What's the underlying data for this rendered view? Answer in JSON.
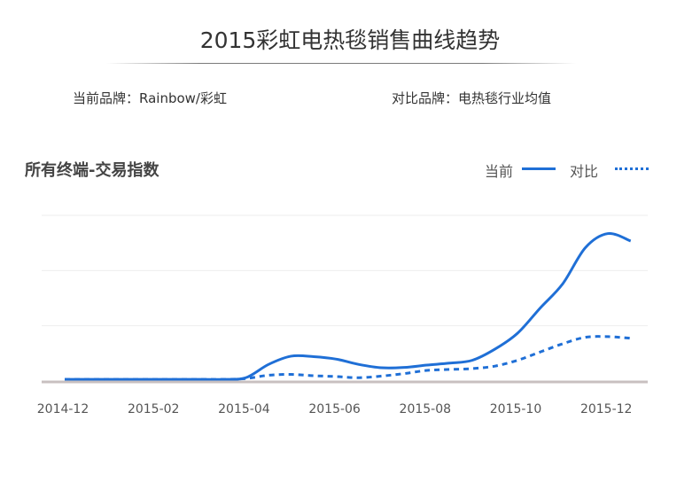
{
  "header": {
    "title": "2015彩虹电热毯销售曲线趋势",
    "current_brand": "当前品牌：Rainbow/彩虹",
    "compare_brand": "对比品牌：电热毯行业均值"
  },
  "section": {
    "title": "所有终端-交易指数"
  },
  "legend": {
    "current": "当前",
    "compare": "对比"
  },
  "colors": {
    "series": "#1f6fd6",
    "axis": "#c8c0c0",
    "grid": "#eeeeee",
    "tick_text": "#555555"
  },
  "chart_data": {
    "type": "line",
    "title": "所有终端-交易指数",
    "xlabel": "",
    "ylabel": "",
    "x_ticks": [
      "2014-12",
      "2015-02",
      "2015-04",
      "2015-06",
      "2015-08",
      "2015-10",
      "2015-12"
    ],
    "x_range": [
      0,
      12.6
    ],
    "ylim": [
      0,
      100
    ],
    "grid": true,
    "legend_position": "top-right",
    "series": [
      {
        "name": "当前",
        "style": "solid",
        "x": [
          0,
          1,
          2,
          3,
          3.5,
          4,
          4.5,
          5,
          5.5,
          6,
          6.5,
          7,
          7.5,
          8,
          8.5,
          9,
          9.5,
          10,
          10.5,
          11,
          11.5,
          12,
          12.5
        ],
        "y": [
          1,
          1,
          1,
          1,
          1,
          2,
          10,
          15,
          14.7,
          13.2,
          10,
          8,
          8.2,
          9.6,
          10.8,
          12.5,
          19.2,
          28.8,
          44,
          58.7,
          80.5,
          89,
          84.5
        ]
      },
      {
        "name": "对比",
        "style": "dotted",
        "x": [
          0,
          1,
          2,
          3,
          3.5,
          4,
          4.5,
          5,
          5.5,
          6,
          6.5,
          7,
          7.5,
          8,
          8.5,
          9,
          9.5,
          10,
          10.5,
          11,
          11.5,
          12,
          12.5
        ],
        "y": [
          1,
          1,
          1,
          1,
          1,
          1.5,
          3.5,
          4,
          3.2,
          2.7,
          2,
          3,
          4.5,
          6.4,
          7,
          7.5,
          9,
          12.5,
          17.5,
          22.5,
          26.4,
          26.8,
          25.8
        ]
      }
    ]
  }
}
